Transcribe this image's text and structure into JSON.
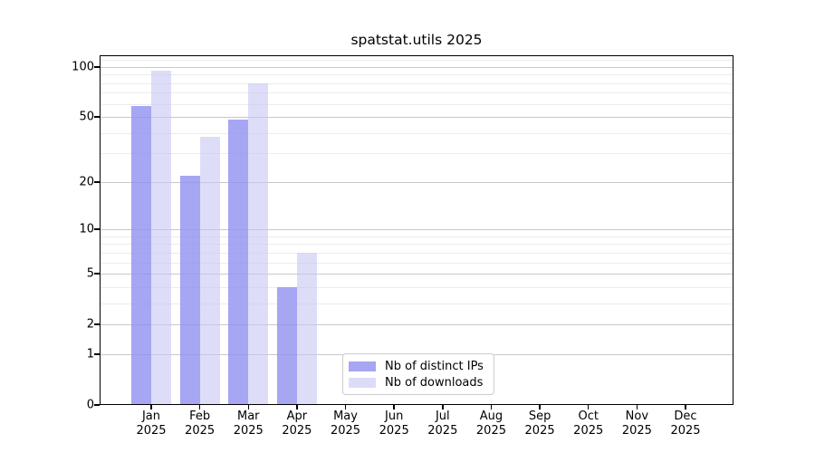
{
  "title": "spatstat.utils 2025",
  "chart_data": {
    "type": "bar",
    "title": "spatstat.utils 2025",
    "yscale": "log10(1+y)",
    "ylim": [
      0,
      117.6
    ],
    "y_ticks": [
      0,
      1,
      2,
      5,
      10,
      20,
      50,
      100
    ],
    "y_minor_gridlines": [
      3,
      4,
      6,
      7,
      8,
      9,
      30,
      40,
      60,
      70,
      80,
      90,
      110
    ],
    "grid": "both",
    "months": [
      "Jan",
      "Feb",
      "Mar",
      "Apr",
      "May",
      "Jun",
      "Jul",
      "Aug",
      "Sep",
      "Oct",
      "Nov",
      "Dec"
    ],
    "year_label": "2025",
    "series": [
      {
        "name": "Nb of distinct IPs",
        "legend_color": "#a6a6f2",
        "fill": "#9090f0",
        "fill_opacity": 0.8,
        "values": [
          58,
          22,
          48,
          4,
          null,
          null,
          null,
          null,
          null,
          null,
          null,
          null
        ]
      },
      {
        "name": "Nb of downloads",
        "legend_color": "#dcdcf9",
        "fill": "#c6c6f4",
        "fill_opacity": 0.6,
        "values": [
          95,
          38,
          80,
          7,
          null,
          null,
          null,
          null,
          null,
          null,
          null,
          null
        ]
      }
    ],
    "legend_position": "bottom-center"
  },
  "colors": {
    "background": "#ffffff",
    "axis": "#000000",
    "grid_major": "#c9c9c9",
    "grid_minor": "#ececec",
    "legend_border": "#cccccc",
    "text": "#000000"
  }
}
